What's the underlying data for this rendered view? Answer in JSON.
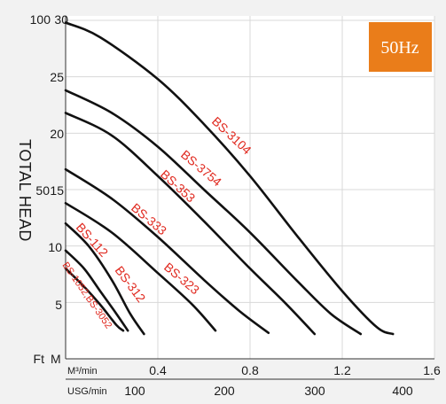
{
  "chart_data": {
    "type": "line",
    "badge": "50Hz",
    "ylabel": "TOTAL HEAD",
    "y_unit_m": "M",
    "y_unit_ft": "Ft",
    "x_unit_m3": "M³/min",
    "x_unit_usg": "USG/min",
    "ylim": [
      0,
      30
    ],
    "xlim": [
      0,
      1.6
    ],
    "y_ticks_m": [
      "5",
      "10",
      "15",
      "20",
      "25",
      "30"
    ],
    "y_ticks_ft": [
      "50",
      "100"
    ],
    "x_ticks_m3": [
      "0.4",
      "0.8",
      "1.2",
      "1.6"
    ],
    "x_ticks_usg": [
      "100",
      "200",
      "300",
      "400"
    ],
    "series": [
      {
        "name": "BS-3104",
        "points": [
          [
            0.0,
            29.8
          ],
          [
            0.15,
            28.5
          ],
          [
            0.4,
            24.8
          ],
          [
            0.6,
            20.8
          ],
          [
            0.8,
            16.2
          ],
          [
            1.0,
            11.0
          ],
          [
            1.2,
            6.0
          ],
          [
            1.35,
            2.8
          ],
          [
            1.42,
            2.2
          ]
        ]
      },
      {
        "name": "BS-3754",
        "points": [
          [
            0.0,
            23.8
          ],
          [
            0.2,
            21.8
          ],
          [
            0.4,
            18.8
          ],
          [
            0.6,
            15.0
          ],
          [
            0.8,
            11.2
          ],
          [
            1.0,
            7.0
          ],
          [
            1.15,
            4.0
          ],
          [
            1.28,
            2.2
          ]
        ]
      },
      {
        "name": "BS-353",
        "points": [
          [
            0.0,
            21.8
          ],
          [
            0.2,
            19.8
          ],
          [
            0.4,
            16.2
          ],
          [
            0.6,
            12.2
          ],
          [
            0.8,
            8.0
          ],
          [
            0.95,
            5.0
          ],
          [
            1.08,
            2.2
          ]
        ]
      },
      {
        "name": "BS-333",
        "points": [
          [
            0.0,
            16.8
          ],
          [
            0.2,
            14.2
          ],
          [
            0.4,
            10.8
          ],
          [
            0.6,
            7.0
          ],
          [
            0.75,
            4.3
          ],
          [
            0.88,
            2.3
          ]
        ]
      },
      {
        "name": "BS-323",
        "points": [
          [
            0.0,
            13.8
          ],
          [
            0.2,
            11.2
          ],
          [
            0.4,
            7.6
          ],
          [
            0.55,
            4.8
          ],
          [
            0.65,
            2.5
          ]
        ]
      },
      {
        "name": "BS-312",
        "points": [
          [
            0.0,
            12.0
          ],
          [
            0.1,
            10.0
          ],
          [
            0.2,
            7.0
          ],
          [
            0.28,
            4.0
          ],
          [
            0.34,
            2.2
          ]
        ]
      },
      {
        "name": "BS-112",
        "points": [
          [
            0.0,
            9.6
          ],
          [
            0.08,
            8.0
          ],
          [
            0.15,
            6.0
          ],
          [
            0.22,
            4.0
          ],
          [
            0.27,
            2.5
          ]
        ]
      },
      {
        "name": "BS-1052",
        "points": [
          [
            0.0,
            8.0
          ],
          [
            0.08,
            6.4
          ],
          [
            0.15,
            4.8
          ],
          [
            0.22,
            3.0
          ],
          [
            0.25,
            2.5
          ]
        ]
      }
    ],
    "labels": [
      "BS-3104",
      "BS-3754",
      "BS-353",
      "BS-333",
      "BS-323",
      "BS-312",
      "BS-112",
      "BS-1052,BS-3052"
    ]
  }
}
